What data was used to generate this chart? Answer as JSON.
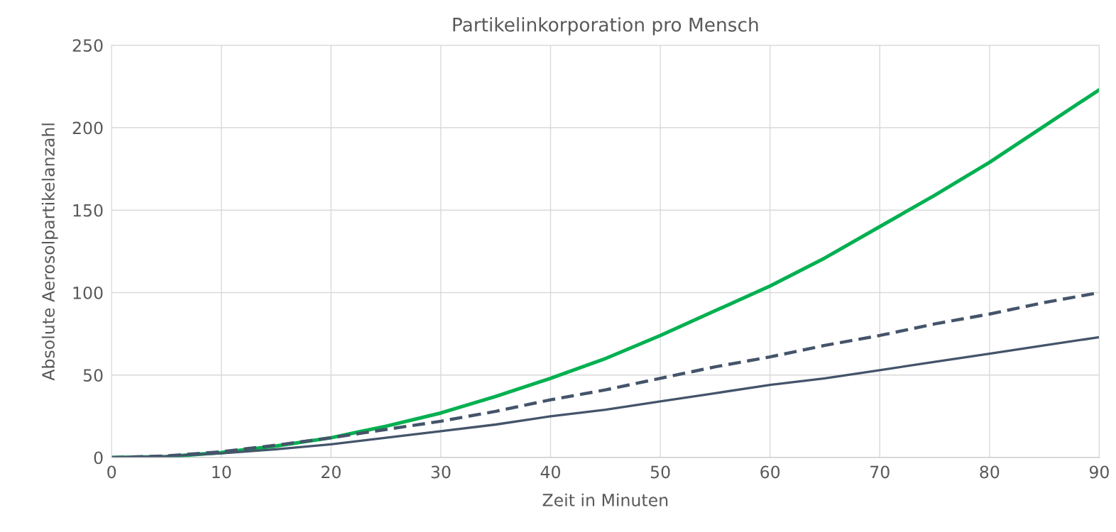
{
  "chart_data": {
    "type": "line",
    "title": "Partikelinkorporation pro Mensch",
    "xlabel": "Zeit in Minuten",
    "ylabel": "Absolute Aerosolpartikelanzahl",
    "x": [
      0,
      5,
      10,
      15,
      20,
      25,
      30,
      35,
      40,
      45,
      50,
      55,
      60,
      65,
      70,
      75,
      80,
      85,
      90
    ],
    "series": [
      {
        "color": "#00b050",
        "line_style": "solid",
        "values": [
          0,
          0.5,
          3,
          7,
          12,
          19,
          27,
          37,
          48,
          60,
          74,
          89,
          104,
          121,
          140,
          159,
          179,
          201,
          223
        ]
      },
      {
        "color": "#44546a",
        "line_style": "dashed",
        "values": [
          0,
          1,
          3.5,
          7.5,
          12,
          17,
          22,
          28,
          35,
          41,
          48,
          55,
          61,
          68,
          74,
          81,
          87,
          94,
          100
        ]
      },
      {
        "color": "#44546a",
        "line_style": "solid",
        "values": [
          0,
          0.8,
          2.5,
          5,
          8,
          12,
          16,
          20,
          25,
          29,
          34,
          39,
          44,
          48,
          53,
          58,
          63,
          68,
          73
        ]
      }
    ],
    "xlim": [
      0,
      90
    ],
    "ylim": [
      0,
      250
    ],
    "xticks": [
      0,
      10,
      20,
      30,
      40,
      50,
      60,
      70,
      80,
      90
    ],
    "yticks": [
      0,
      50,
      100,
      150,
      200,
      250
    ],
    "grid": true
  }
}
